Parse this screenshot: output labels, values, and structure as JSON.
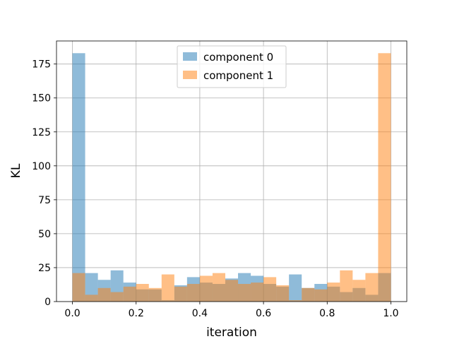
{
  "chart_data": {
    "type": "bar",
    "subtype": "overlapping-histogram",
    "title": "",
    "xlabel": "iteration",
    "ylabel": "KL",
    "xlim": [
      -0.05,
      1.05
    ],
    "ylim": [
      0,
      192
    ],
    "xticks": [
      0.0,
      0.2,
      0.4,
      0.6,
      0.8,
      1.0
    ],
    "xtick_labels": [
      "0.0",
      "0.2",
      "0.4",
      "0.6",
      "0.8",
      "1.0"
    ],
    "yticks": [
      0,
      25,
      50,
      75,
      100,
      125,
      150,
      175
    ],
    "ytick_labels": [
      "0",
      "25",
      "50",
      "75",
      "100",
      "125",
      "150",
      "175"
    ],
    "grid": true,
    "legend_position": "top-center",
    "bin_edges": [
      0.0,
      0.04,
      0.08,
      0.12,
      0.16,
      0.2,
      0.24,
      0.28,
      0.32,
      0.36,
      0.4,
      0.44,
      0.48,
      0.52,
      0.56,
      0.6,
      0.64,
      0.68,
      0.72,
      0.76,
      0.8,
      0.84,
      0.88,
      0.92,
      0.96,
      1.0
    ],
    "series": [
      {
        "name": "component 0",
        "color": "#1f77b4",
        "opacity": 0.5,
        "values": [
          183,
          21,
          16,
          23,
          14,
          9,
          9,
          1,
          12,
          18,
          14,
          13,
          17,
          21,
          19,
          13,
          11,
          20,
          10,
          13,
          11,
          7,
          10,
          5,
          21
        ]
      },
      {
        "name": "component 1",
        "color": "#ff7f0e",
        "opacity": 0.5,
        "values": [
          21,
          5,
          10,
          7,
          11,
          13,
          10,
          20,
          11,
          13,
          19,
          21,
          16,
          13,
          14,
          18,
          12,
          1,
          10,
          9,
          14,
          23,
          16,
          21,
          183
        ]
      }
    ]
  }
}
